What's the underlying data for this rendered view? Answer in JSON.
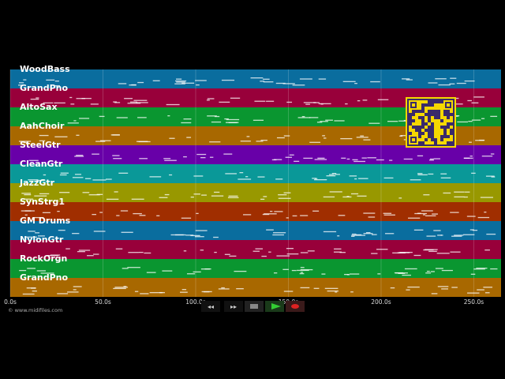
{
  "tracks": [
    {
      "name": "WoodBass",
      "color": "#0a6d9e"
    },
    {
      "name": "GrandPno",
      "color": "#98003a"
    },
    {
      "name": "AltoSax",
      "color": "#0a9630"
    },
    {
      "name": "AahChoir",
      "color": "#a86800"
    },
    {
      "name": "SteelGtr",
      "color": "#6800a8"
    },
    {
      "name": "CleanGtr",
      "color": "#0a9898"
    },
    {
      "name": "JazzGtr",
      "color": "#989800"
    },
    {
      "name": "SynStrg1",
      "color": "#a02e00"
    },
    {
      "name": "GM Drums",
      "color": "#0a6d9e"
    },
    {
      "name": "NylonGtr",
      "color": "#98003a"
    },
    {
      "name": "RockOrgn",
      "color": "#0a9630"
    },
    {
      "name": "GrandPno",
      "color": "#a86800"
    }
  ],
  "time_axis": {
    "range": [
      0,
      264.7
    ],
    "ticks": [
      {
        "value": 0,
        "label": "0.0s"
      },
      {
        "value": 50,
        "label": "50.0s"
      },
      {
        "value": 100,
        "label": "100.0s"
      },
      {
        "value": 150,
        "label": "150.0s"
      },
      {
        "value": 200,
        "label": "200.0s"
      },
      {
        "value": 250,
        "label": "250.0s"
      }
    ]
  },
  "footer": "© www.midifiles.com"
}
